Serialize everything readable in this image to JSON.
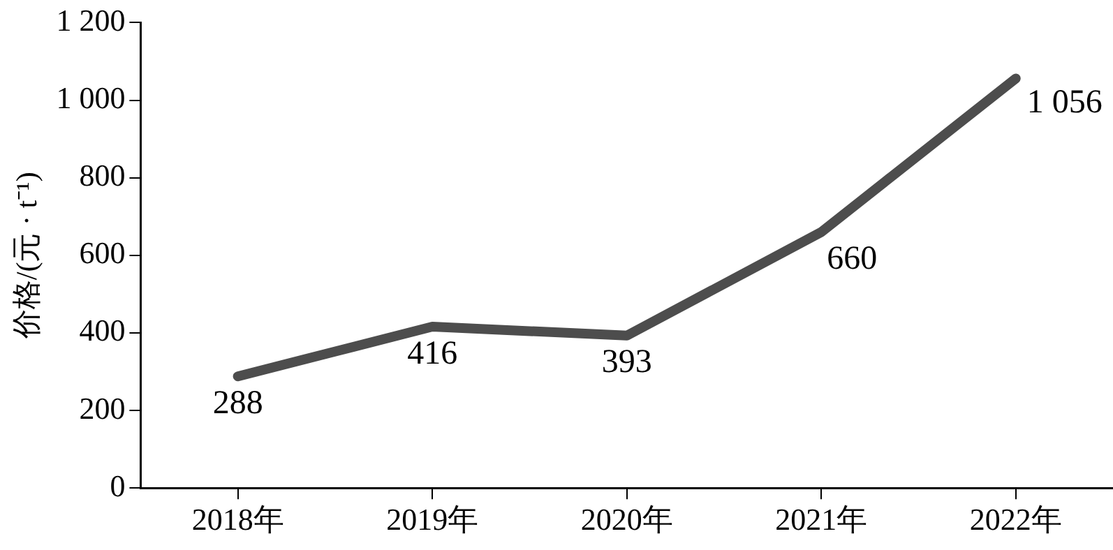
{
  "chart_data": {
    "type": "line",
    "ylabel": "价格/(元 · t⁻¹)",
    "categories": [
      "2018年",
      "2019年",
      "2020年",
      "2021年",
      "2022年"
    ],
    "series": [
      {
        "color": "#4d4d4d",
        "values": [
          288,
          416,
          393,
          660,
          1056
        ],
        "value_labels": [
          "288",
          "416",
          "393",
          "660",
          "1 056"
        ]
      }
    ],
    "ylim": [
      0,
      1200
    ],
    "yticks": [
      0,
      200,
      400,
      600,
      800,
      {
        "value": 1000,
        "label": "1 000"
      },
      {
        "value": 1200,
        "label": "1 200"
      }
    ],
    "grid": false,
    "legend": false,
    "marker": "none",
    "line_style": "solid"
  }
}
